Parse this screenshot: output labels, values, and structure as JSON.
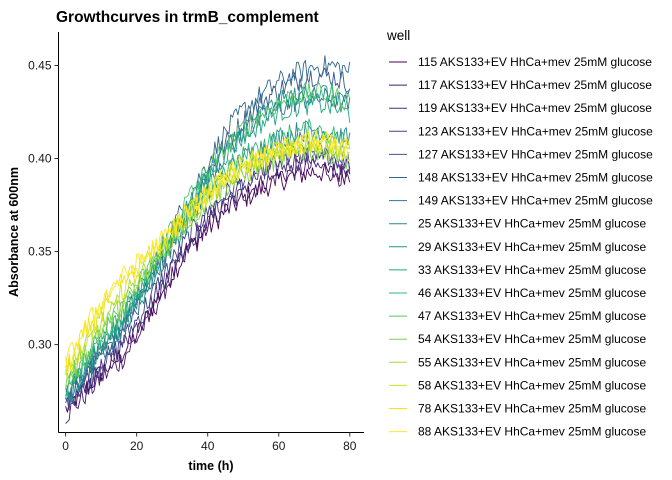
{
  "chart_data": {
    "type": "line",
    "title": "Growthcurves in trmB_complement",
    "xlabel": "time (h)",
    "ylabel": "Absorbance at 600nm",
    "xlim": [
      -2,
      84
    ],
    "ylim": [
      0.253,
      0.468
    ],
    "xticks": [
      0,
      20,
      40,
      60,
      80
    ],
    "yticks": [
      0.3,
      0.35,
      0.4,
      0.45
    ],
    "ytick_labels": [
      "0.30",
      "0.35",
      "0.40",
      "0.45"
    ],
    "grid": false,
    "legend_position": "right",
    "legend_title": "well",
    "time_points": [
      0,
      5,
      10,
      15,
      20,
      25,
      30,
      35,
      40,
      45,
      50,
      55,
      60,
      65,
      70,
      75,
      80
    ],
    "series": [
      {
        "name": "115 AKS133+EV HhCa+mev 25mM glucose",
        "color": "#440154",
        "values": [
          0.265,
          0.275,
          0.285,
          0.293,
          0.305,
          0.322,
          0.338,
          0.352,
          0.362,
          0.372,
          0.378,
          0.384,
          0.388,
          0.391,
          0.393,
          0.392,
          0.392
        ]
      },
      {
        "name": "117 AKS133+EV HhCa+mev 25mM glucose",
        "color": "#481a6c",
        "values": [
          0.262,
          0.272,
          0.282,
          0.29,
          0.303,
          0.32,
          0.337,
          0.353,
          0.365,
          0.374,
          0.381,
          0.386,
          0.391,
          0.394,
          0.396,
          0.393,
          0.388
        ]
      },
      {
        "name": "119 AKS133+EV HhCa+mev 25mM glucose",
        "color": "#472f7d",
        "values": [
          0.266,
          0.277,
          0.287,
          0.297,
          0.31,
          0.326,
          0.342,
          0.356,
          0.368,
          0.378,
          0.385,
          0.391,
          0.396,
          0.399,
          0.401,
          0.399,
          0.395
        ]
      },
      {
        "name": "123 AKS133+EV HhCa+mev 25mM glucose",
        "color": "#414487",
        "values": [
          0.268,
          0.279,
          0.29,
          0.299,
          0.313,
          0.329,
          0.345,
          0.359,
          0.371,
          0.381,
          0.388,
          0.394,
          0.398,
          0.402,
          0.404,
          0.401,
          0.397
        ]
      },
      {
        "name": "127 AKS133+EV HhCa+mev 25mM glucose",
        "color": "#39568c",
        "values": [
          0.27,
          0.282,
          0.294,
          0.305,
          0.32,
          0.337,
          0.356,
          0.374,
          0.392,
          0.408,
          0.42,
          0.43,
          0.437,
          0.442,
          0.445,
          0.444,
          0.44
        ]
      },
      {
        "name": "148 AKS133+EV HhCa+mev 25mM glucose",
        "color": "#31688e",
        "values": [
          0.272,
          0.285,
          0.298,
          0.31,
          0.326,
          0.344,
          0.363,
          0.38,
          0.398,
          0.414,
          0.426,
          0.434,
          0.441,
          0.446,
          0.449,
          0.45,
          0.447
        ]
      },
      {
        "name": "149 AKS133+EV HhCa+mev 25mM glucose",
        "color": "#2a788e",
        "values": [
          0.27,
          0.283,
          0.295,
          0.306,
          0.321,
          0.338,
          0.356,
          0.373,
          0.389,
          0.403,
          0.413,
          0.421,
          0.427,
          0.431,
          0.433,
          0.432,
          0.428
        ]
      },
      {
        "name": "25 AKS133+EV HhCa+mev 25mM glucose",
        "color": "#23888e",
        "values": [
          0.271,
          0.284,
          0.296,
          0.307,
          0.321,
          0.337,
          0.353,
          0.368,
          0.381,
          0.392,
          0.4,
          0.406,
          0.411,
          0.414,
          0.416,
          0.414,
          0.41
        ]
      },
      {
        "name": "29 AKS133+EV HhCa+mev 25mM glucose",
        "color": "#1f988b",
        "values": [
          0.273,
          0.286,
          0.299,
          0.31,
          0.324,
          0.34,
          0.358,
          0.375,
          0.391,
          0.405,
          0.416,
          0.424,
          0.43,
          0.434,
          0.436,
          0.435,
          0.431
        ]
      },
      {
        "name": "33 AKS133+EV HhCa+mev 25mM glucose",
        "color": "#22a884",
        "values": [
          0.274,
          0.288,
          0.301,
          0.312,
          0.326,
          0.343,
          0.36,
          0.376,
          0.39,
          0.402,
          0.412,
          0.419,
          0.425,
          0.428,
          0.43,
          0.428,
          0.424
        ]
      },
      {
        "name": "46 AKS133+EV HhCa+mev 25mM glucose",
        "color": "#35b779",
        "values": [
          0.276,
          0.29,
          0.303,
          0.314,
          0.327,
          0.343,
          0.358,
          0.372,
          0.384,
          0.394,
          0.401,
          0.407,
          0.411,
          0.414,
          0.416,
          0.413,
          0.408
        ]
      },
      {
        "name": "47 AKS133+EV HhCa+mev 25mM glucose",
        "color": "#54c568",
        "values": [
          0.278,
          0.292,
          0.305,
          0.316,
          0.33,
          0.347,
          0.364,
          0.38,
          0.394,
          0.406,
          0.416,
          0.424,
          0.43,
          0.434,
          0.436,
          0.434,
          0.43
        ]
      },
      {
        "name": "54 AKS133+EV HhCa+mev 25mM glucose",
        "color": "#7ad151",
        "values": [
          0.28,
          0.294,
          0.308,
          0.319,
          0.331,
          0.344,
          0.356,
          0.367,
          0.377,
          0.385,
          0.391,
          0.396,
          0.4,
          0.403,
          0.405,
          0.403,
          0.4
        ]
      },
      {
        "name": "55 AKS133+EV HhCa+mev 25mM glucose",
        "color": "#a5db36",
        "values": [
          0.282,
          0.297,
          0.311,
          0.322,
          0.334,
          0.346,
          0.358,
          0.369,
          0.379,
          0.387,
          0.393,
          0.398,
          0.402,
          0.405,
          0.407,
          0.405,
          0.402
        ]
      },
      {
        "name": "58 AKS133+EV HhCa+mev 25mM glucose",
        "color": "#d2e21b",
        "values": [
          0.285,
          0.301,
          0.316,
          0.327,
          0.338,
          0.349,
          0.36,
          0.371,
          0.381,
          0.389,
          0.395,
          0.4,
          0.403,
          0.406,
          0.408,
          0.406,
          0.403
        ]
      },
      {
        "name": "78 AKS133+EV HhCa+mev 25mM glucose",
        "color": "#f1e51d",
        "values": [
          0.288,
          0.304,
          0.32,
          0.331,
          0.341,
          0.351,
          0.362,
          0.373,
          0.383,
          0.391,
          0.397,
          0.402,
          0.405,
          0.408,
          0.41,
          0.408,
          0.405
        ]
      },
      {
        "name": "88 AKS133+EV HhCa+mev 25mM glucose",
        "color": "#fde725",
        "values": [
          0.29,
          0.307,
          0.323,
          0.334,
          0.343,
          0.352,
          0.362,
          0.372,
          0.381,
          0.389,
          0.395,
          0.4,
          0.404,
          0.407,
          0.409,
          0.407,
          0.404
        ]
      }
    ]
  }
}
